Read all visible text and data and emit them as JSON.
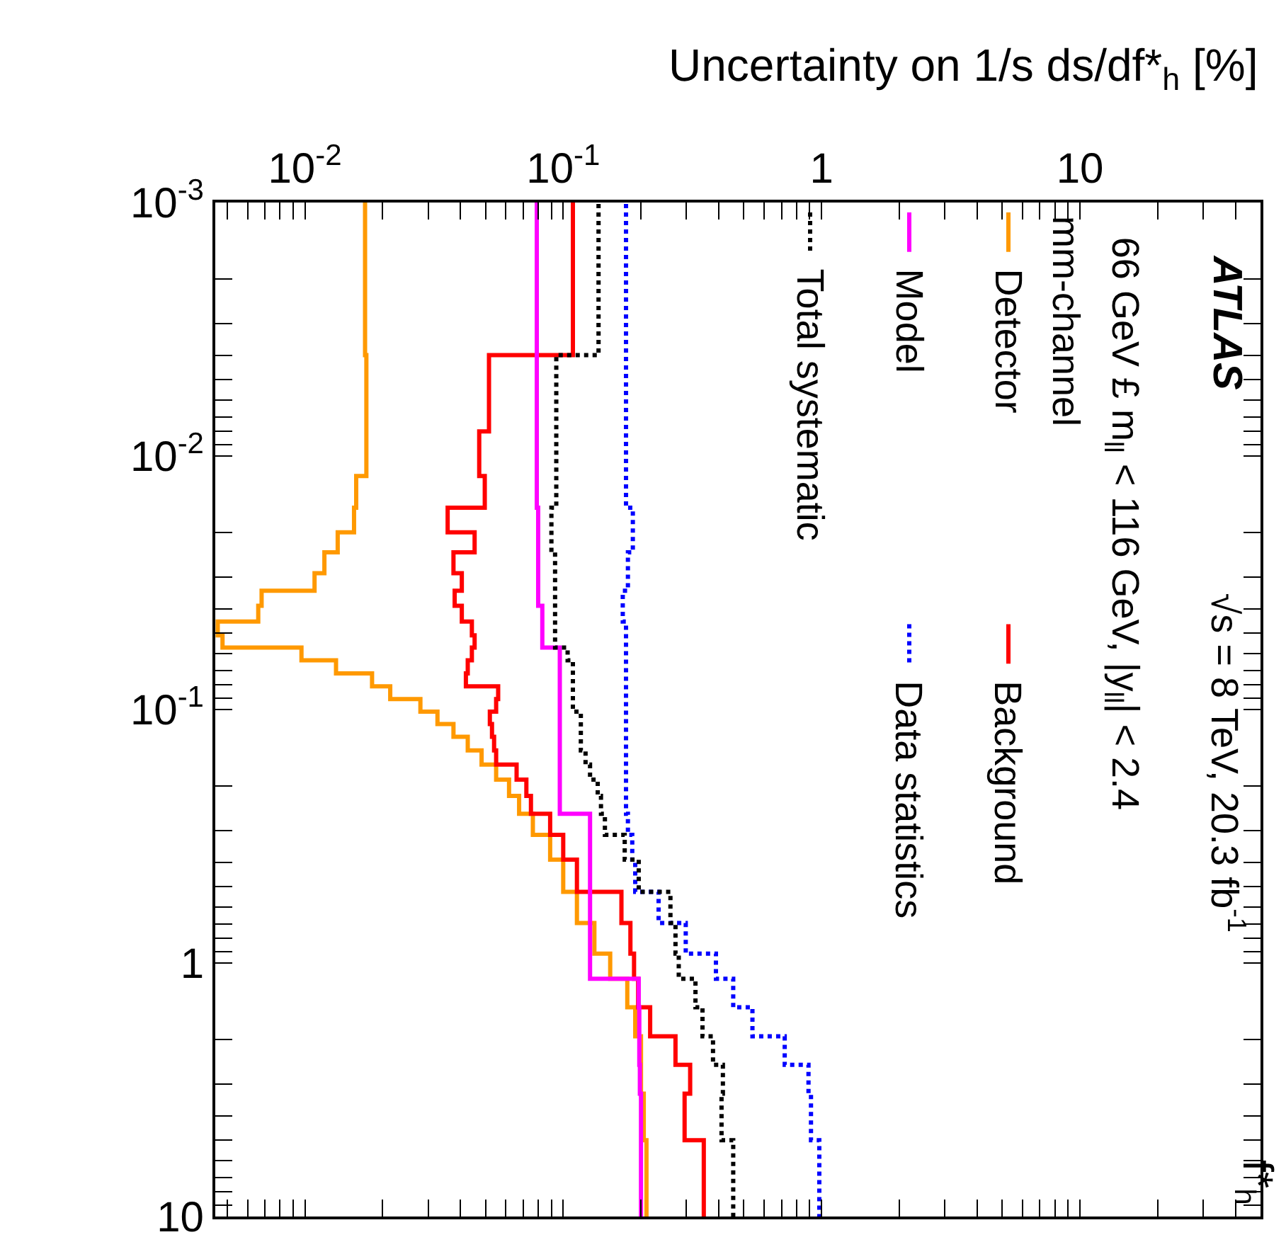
{
  "chart_data": {
    "type": "step",
    "orientation": "horizontal",
    "xlabel": "Uncertainty on 1/s ds/df*$_{h}$ [%]",
    "ylabel": "f*$_{h}$",
    "annotations": [
      "ATLAS",
      "√s = 8 TeV, 20.3 fb$^{-1}$",
      "66 GeV £ m$_{ll}$ < 116 GeV, |y$_{ll}$| < 2.4",
      "mm-channel"
    ],
    "x": [
      0.004,
      0.008,
      0.012,
      0.016,
      0.02,
      0.024,
      0.029,
      0.034,
      0.039,
      0.045,
      0.051,
      0.057,
      0.064,
      0.072,
      0.081,
      0.091,
      0.102,
      0.114,
      0.128,
      0.145,
      0.165,
      0.189,
      0.219,
      0.258,
      0.312,
      0.391,
      0.524,
      0.695,
      0.918,
      1.153,
      1.496,
      1.947,
      2.522,
      3.277,
      5.0,
      10
    ],
    "series": [
      {
        "name": "Detector",
        "color": "#ff9900",
        "line_style": "solid",
        "values": [
          0.0171,
          0.0173,
          0.0173,
          0.0158,
          0.0155,
          0.0134,
          0.0119,
          0.0109,
          0.0068,
          0.0066,
          0.0046,
          0.0048,
          0.0097,
          0.0132,
          0.0182,
          0.0214,
          0.028,
          0.0326,
          0.0376,
          0.0427,
          0.0483,
          0.055,
          0.0617,
          0.0675,
          0.0763,
          0.089,
          0.1,
          0.113,
          0.132,
          0.152,
          0.177,
          0.19,
          0.2,
          0.2,
          0.205,
          0.21
        ]
      },
      {
        "name": "Background",
        "color": "#ff0000",
        "line_style": "solid",
        "values": [
          0.109,
          0.0516,
          0.0473,
          0.0497,
          0.0357,
          0.0454,
          0.0376,
          0.0405,
          0.038,
          0.0405,
          0.0443,
          0.0454,
          0.0443,
          0.0427,
          0.042,
          0.056,
          0.055,
          0.052,
          0.053,
          0.054,
          0.055,
          0.066,
          0.072,
          0.075,
          0.089,
          0.1,
          0.113,
          0.168,
          0.182,
          0.188,
          0.195,
          0.217,
          0.272,
          0.31,
          0.295,
          0.35
        ]
      },
      {
        "name": "Model",
        "color": "#ff00ff",
        "line_style": "solid",
        "values": [
          0.079,
          0.079,
          0.079,
          0.079,
          0.08,
          0.08,
          0.08,
          0.08,
          0.08,
          0.083,
          0.083,
          0.083,
          0.097,
          0.097,
          0.097,
          0.097,
          0.097,
          0.097,
          0.097,
          0.097,
          0.097,
          0.097,
          0.097,
          0.097,
          0.127,
          0.127,
          0.127,
          0.127,
          0.127,
          0.127,
          0.196,
          0.197,
          0.197,
          0.198,
          0.2,
          0.2
        ]
      },
      {
        "name": "Data statistics",
        "color": "#0000ff",
        "line_style": "dotted",
        "values": [
          0.175,
          0.175,
          0.175,
          0.175,
          0.186,
          0.186,
          0.178,
          0.178,
          0.17,
          0.17,
          0.175,
          0.175,
          0.175,
          0.175,
          0.175,
          0.175,
          0.175,
          0.175,
          0.175,
          0.175,
          0.175,
          0.175,
          0.175,
          0.175,
          0.178,
          0.185,
          0.19,
          0.234,
          0.298,
          0.39,
          0.455,
          0.54,
          0.72,
          0.89,
          0.91,
          0.98
        ]
      },
      {
        "name": "Total systematic",
        "color": "#000000",
        "line_style": "dotted",
        "values": [
          0.137,
          0.094,
          0.094,
          0.094,
          0.09,
          0.09,
          0.093,
          0.093,
          0.093,
          0.093,
          0.093,
          0.093,
          0.104,
          0.109,
          0.109,
          0.109,
          0.109,
          0.117,
          0.117,
          0.117,
          0.122,
          0.127,
          0.136,
          0.14,
          0.145,
          0.173,
          0.196,
          0.26,
          0.272,
          0.28,
          0.325,
          0.346,
          0.38,
          0.415,
          0.41,
          0.455
        ]
      }
    ],
    "ylim": [
      10,
      0.001
    ],
    "yticks": [
      {
        "value": 0.001,
        "label": "10$^{-3}$"
      },
      {
        "value": 0.002,
        "label": null
      },
      {
        "value": 0.003,
        "label": null
      },
      {
        "value": 0.004,
        "label": null
      },
      {
        "value": 0.005,
        "label": null
      },
      {
        "value": 0.006,
        "label": null
      },
      {
        "value": 0.007,
        "label": null
      },
      {
        "value": 0.008,
        "label": null
      },
      {
        "value": 0.009,
        "label": null
      },
      {
        "value": 0.01,
        "label": "10$^{-2}$"
      },
      {
        "value": 0.02,
        "label": null
      },
      {
        "value": 0.03,
        "label": null
      },
      {
        "value": 0.04,
        "label": null
      },
      {
        "value": 0.05,
        "label": null
      },
      {
        "value": 0.06,
        "label": null
      },
      {
        "value": 0.07,
        "label": null
      },
      {
        "value": 0.08,
        "label": null
      },
      {
        "value": 0.09,
        "label": null
      },
      {
        "value": 0.1,
        "label": "10$^{-1}$"
      },
      {
        "value": 0.2,
        "label": null
      },
      {
        "value": 0.3,
        "label": null
      },
      {
        "value": 0.4,
        "label": null
      },
      {
        "value": 0.5,
        "label": null
      },
      {
        "value": 0.6,
        "label": null
      },
      {
        "value": 0.7,
        "label": null
      },
      {
        "value": 0.8,
        "label": null
      },
      {
        "value": 0.9,
        "label": null
      },
      1,
      {
        "value": 2,
        "label": null
      },
      {
        "value": 3,
        "label": null
      },
      {
        "value": 4,
        "label": null
      },
      {
        "value": 5,
        "label": null
      },
      {
        "value": 6,
        "label": null
      },
      {
        "value": 7,
        "label": null
      },
      {
        "value": 8,
        "label": null
      },
      {
        "value": 9,
        "label": null
      },
      10
    ],
    "xlim": [
      0.0045,
      50
    ],
    "xticks": [
      {
        "value": 0.005,
        "label": null
      },
      {
        "value": 0.006,
        "label": null
      },
      {
        "value": 0.007,
        "label": null
      },
      {
        "value": 0.008,
        "label": null
      },
      {
        "value": 0.009,
        "label": null
      },
      {
        "value": 0.01,
        "label": "10$^{-2}$"
      },
      {
        "value": 0.02,
        "label": null
      },
      {
        "value": 0.03,
        "label": null
      },
      {
        "value": 0.04,
        "label": null
      },
      {
        "value": 0.05,
        "label": null
      },
      {
        "value": 0.06,
        "label": null
      },
      {
        "value": 0.07,
        "label": null
      },
      {
        "value": 0.08,
        "label": null
      },
      {
        "value": 0.09,
        "label": null
      },
      {
        "value": 0.1,
        "label": "10$^{-1}$"
      },
      {
        "value": 0.2,
        "label": null
      },
      {
        "value": 0.3,
        "label": null
      },
      {
        "value": 0.4,
        "label": null
      },
      {
        "value": 0.5,
        "label": null
      },
      {
        "value": 0.6,
        "label": null
      },
      {
        "value": 0.7,
        "label": null
      },
      {
        "value": 0.8,
        "label": null
      },
      {
        "value": 0.9,
        "label": null
      },
      1,
      {
        "value": 2,
        "label": null
      },
      {
        "value": 3,
        "label": null
      },
      {
        "value": 4,
        "label": null
      },
      {
        "value": 5,
        "label": null
      },
      {
        "value": 6,
        "label": null
      },
      {
        "value": 7,
        "label": null
      },
      {
        "value": 8,
        "label": null
      },
      {
        "value": 9,
        "label": null
      },
      10,
      {
        "value": 20,
        "label": null
      },
      {
        "value": 30,
        "label": null
      },
      {
        "value": 40,
        "label": null
      },
      {
        "value": 50,
        "label": null
      }
    ],
    "log": "xy",
    "legend": "top right",
    "marker": "none"
  }
}
